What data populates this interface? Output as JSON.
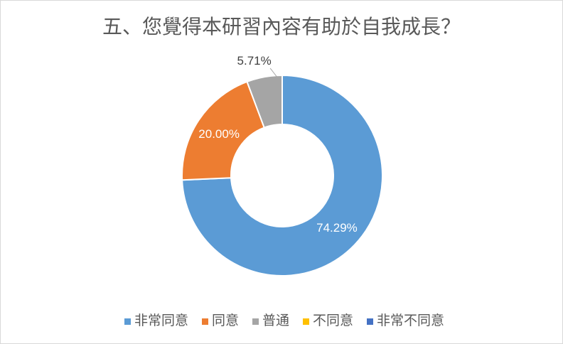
{
  "chart_data": {
    "type": "pie",
    "style": "donut",
    "title": "五、您覺得本研習內容有助於自我成長？",
    "categories": [
      "非常同意",
      "同意",
      "普通",
      "不同意",
      "非常不同意"
    ],
    "values": [
      74.29,
      20.0,
      5.71,
      0,
      0
    ],
    "data_labels": [
      "74.29%",
      "20.00%",
      "5.71%",
      null,
      null
    ],
    "colors": [
      "#5B9BD5",
      "#ED7D31",
      "#A5A5A5",
      "#FFC000",
      "#4472C4"
    ],
    "legend": "bottom"
  }
}
